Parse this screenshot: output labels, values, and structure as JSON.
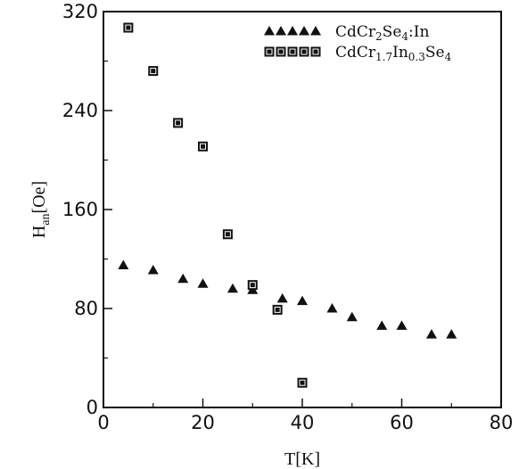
{
  "chart_data": {
    "type": "scatter",
    "xlabel": "T[K]",
    "ylabel": "H",
    "ylabel_sub": "an",
    "ylabel_unit": "[Oe]",
    "xlim": [
      0,
      80
    ],
    "ylim": [
      0,
      320
    ],
    "x_ticks": [
      0,
      20,
      40,
      60,
      80
    ],
    "y_ticks": [
      0,
      80,
      160,
      240,
      320
    ],
    "grid": false,
    "legend_position": "top-right",
    "series": [
      {
        "name": "CdCr2Se4:In",
        "legend_parts": [
          {
            "text": "CdCr"
          },
          {
            "text": "2",
            "sub": true
          },
          {
            "text": "Se"
          },
          {
            "text": "4",
            "sub": true
          },
          {
            "text": ":In"
          }
        ],
        "marker": "triangle",
        "color": "#111111",
        "points": [
          [
            4,
            115
          ],
          [
            10,
            111
          ],
          [
            16,
            104
          ],
          [
            20,
            100
          ],
          [
            26,
            96
          ],
          [
            30,
            95
          ],
          [
            36,
            88
          ],
          [
            40,
            86
          ],
          [
            46,
            80
          ],
          [
            50,
            73
          ],
          [
            56,
            66
          ],
          [
            60,
            66
          ],
          [
            66,
            59
          ],
          [
            70,
            59
          ]
        ]
      },
      {
        "name": "CdCr1.7In0.3Se4",
        "legend_parts": [
          {
            "text": "CdCr"
          },
          {
            "text": "1.7",
            "sub": true
          },
          {
            "text": "In"
          },
          {
            "text": "0.3",
            "sub": true
          },
          {
            "text": "Se"
          },
          {
            "text": "4",
            "sub": true
          }
        ],
        "marker": "square",
        "color": "#111111",
        "points": [
          [
            5,
            307
          ],
          [
            10,
            272
          ],
          [
            15,
            230
          ],
          [
            20,
            211
          ],
          [
            25,
            140
          ],
          [
            30,
            99
          ],
          [
            35,
            79
          ],
          [
            40,
            20
          ]
        ]
      }
    ]
  }
}
